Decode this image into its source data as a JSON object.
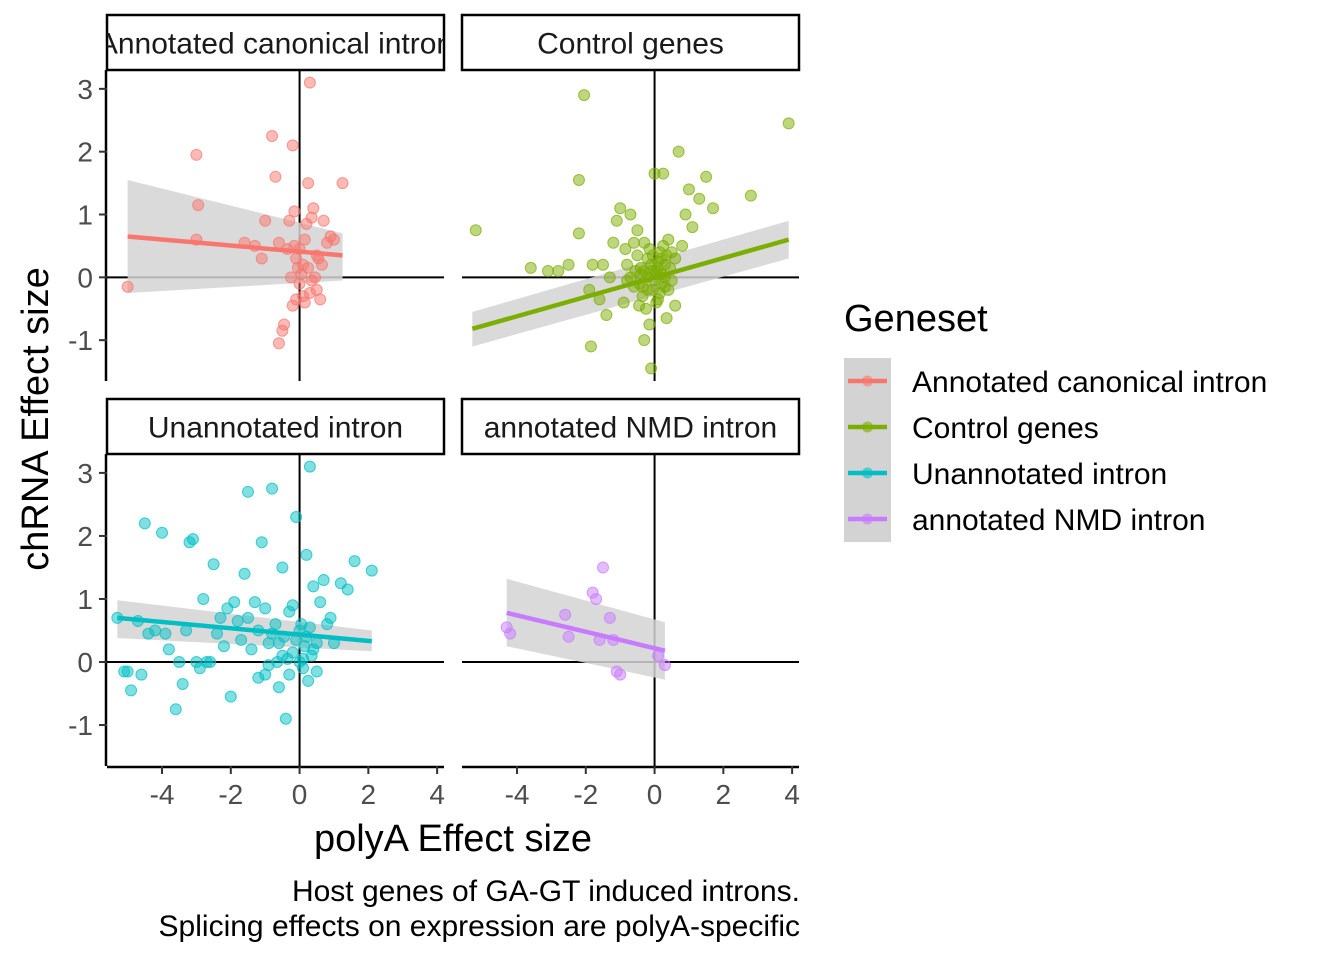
{
  "chart_data": {
    "type": "scatter",
    "xlabel": "polyA Effect size",
    "ylabel": "chRNA Effect size",
    "caption": [
      "Host genes of GA-GT induced introns.",
      "Splicing effects on expression are polyA-specific"
    ],
    "xlim": [
      -5.6,
      4.2
    ],
    "ylim": [
      -1.65,
      3.3
    ],
    "x_ticks": [
      -4,
      -2,
      0,
      2,
      4
    ],
    "y_ticks": [
      -1,
      0,
      1,
      2,
      3
    ],
    "grid": false,
    "reference_lines": {
      "x": 0,
      "y": 0
    },
    "legend": {
      "title": "Geneset",
      "position": "right"
    },
    "colors": {
      "Annotated canonical intron": "#F8766D",
      "Control genes": "#7CAE00",
      "Unannotated intron": "#00BFC4",
      "annotated NMD intron": "#C77CFF",
      "ribbon": "#d3d3d3"
    },
    "panels": [
      {
        "strip": "Annotated canonical intron",
        "series": "Annotated canonical intron",
        "fit": {
          "x": [
            -5.0,
            1.25
          ],
          "y": [
            0.65,
            0.35
          ],
          "se_lower": [
            -0.25,
            -0.05
          ],
          "se_upper": [
            1.55,
            0.7
          ]
        },
        "points": [
          [
            -5.0,
            -0.15
          ],
          [
            -3.0,
            1.95
          ],
          [
            -2.95,
            1.15
          ],
          [
            -3.0,
            0.6
          ],
          [
            -1.6,
            0.55
          ],
          [
            -1.3,
            0.5
          ],
          [
            -1.1,
            0.3
          ],
          [
            -1.0,
            0.9
          ],
          [
            -0.8,
            2.25
          ],
          [
            -0.7,
            1.6
          ],
          [
            -0.6,
            0.55
          ],
          [
            -0.5,
            -0.85
          ],
          [
            -0.45,
            -0.75
          ],
          [
            -0.35,
            0.45
          ],
          [
            -0.3,
            0.9
          ],
          [
            -0.6,
            -1.05
          ],
          [
            -0.2,
            2.1
          ],
          [
            -0.15,
            1.05
          ],
          [
            -0.1,
            0.3
          ],
          [
            -0.05,
            0.15
          ],
          [
            0.0,
            -0.1
          ],
          [
            0.05,
            0.05
          ],
          [
            0.1,
            -0.3
          ],
          [
            0.15,
            0.6
          ],
          [
            0.2,
            0.85
          ],
          [
            0.25,
            1.5
          ],
          [
            0.3,
            3.1
          ],
          [
            0.35,
            0.95
          ],
          [
            0.4,
            1.1
          ],
          [
            0.45,
            0.0
          ],
          [
            0.5,
            -0.2
          ],
          [
            0.55,
            0.3
          ],
          [
            0.6,
            -0.35
          ],
          [
            0.65,
            0.2
          ],
          [
            0.7,
            0.9
          ],
          [
            0.8,
            0.55
          ],
          [
            0.9,
            0.65
          ],
          [
            1.0,
            0.6
          ],
          [
            1.25,
            1.5
          ],
          [
            -0.2,
            -0.45
          ],
          [
            -0.1,
            -0.35
          ],
          [
            0.0,
            0.45
          ],
          [
            0.15,
            -0.4
          ],
          [
            0.25,
            0.15
          ],
          [
            0.35,
            -0.05
          ],
          [
            0.5,
            0.35
          ],
          [
            -0.25,
            0.0
          ],
          [
            0.1,
            0.2
          ],
          [
            0.3,
            -0.25
          ],
          [
            -0.15,
            0.5
          ]
        ]
      },
      {
        "strip": "Control genes",
        "series": "Control genes",
        "fit": {
          "x": [
            -5.3,
            3.9
          ],
          "y": [
            -0.82,
            0.6
          ],
          "se_lower": [
            -1.1,
            0.3
          ],
          "se_upper": [
            -0.55,
            0.9
          ]
        },
        "points": [
          [
            -5.2,
            0.75
          ],
          [
            -3.6,
            0.15
          ],
          [
            -3.1,
            0.1
          ],
          [
            -2.8,
            0.1
          ],
          [
            -2.5,
            0.2
          ],
          [
            -2.2,
            1.55
          ],
          [
            -2.2,
            0.7
          ],
          [
            -2.05,
            2.9
          ],
          [
            -1.85,
            -1.1
          ],
          [
            -1.9,
            -0.2
          ],
          [
            -1.8,
            0.2
          ],
          [
            -1.6,
            -0.35
          ],
          [
            -1.5,
            0.2
          ],
          [
            -1.4,
            -0.6
          ],
          [
            -1.3,
            0.0
          ],
          [
            -1.2,
            0.55
          ],
          [
            -1.1,
            0.9
          ],
          [
            -1.0,
            1.1
          ],
          [
            -0.9,
            -0.4
          ],
          [
            -0.85,
            0.45
          ],
          [
            -0.8,
            0.2
          ],
          [
            -0.7,
            1.0
          ],
          [
            -0.6,
            0.55
          ],
          [
            -0.5,
            0.75
          ],
          [
            -0.45,
            -0.1
          ],
          [
            -0.4,
            0.15
          ],
          [
            -0.35,
            -0.3
          ],
          [
            -0.3,
            0.55
          ],
          [
            -0.25,
            -0.5
          ],
          [
            -0.2,
            0.3
          ],
          [
            -0.15,
            -0.75
          ],
          [
            -0.1,
            0.1
          ],
          [
            -0.05,
            -0.2
          ],
          [
            0.0,
            1.65
          ],
          [
            0.05,
            0.05
          ],
          [
            0.1,
            -0.35
          ],
          [
            0.15,
            0.4
          ],
          [
            0.2,
            -0.1
          ],
          [
            0.25,
            1.65
          ],
          [
            0.3,
            0.2
          ],
          [
            0.35,
            -0.65
          ],
          [
            0.4,
            0.6
          ],
          [
            0.5,
            -0.05
          ],
          [
            0.6,
            0.3
          ],
          [
            0.7,
            2.0
          ],
          [
            0.8,
            0.5
          ],
          [
            0.9,
            1.0
          ],
          [
            1.0,
            1.4
          ],
          [
            1.1,
            0.8
          ],
          [
            1.3,
            1.25
          ],
          [
            1.5,
            1.6
          ],
          [
            1.7,
            1.1
          ],
          [
            2.8,
            1.3
          ],
          [
            3.9,
            2.45
          ],
          [
            -0.3,
            -1.0
          ],
          [
            -0.1,
            -1.45
          ],
          [
            -0.5,
            0.35
          ],
          [
            -0.6,
            -0.15
          ],
          [
            -0.7,
            0.0
          ],
          [
            -0.8,
            -0.05
          ],
          [
            -0.4,
            0.05
          ],
          [
            -0.2,
            0.0
          ],
          [
            0.0,
            0.1
          ],
          [
            0.1,
            0.15
          ],
          [
            0.2,
            0.05
          ],
          [
            0.3,
            -0.15
          ],
          [
            0.4,
            -0.2
          ],
          [
            0.1,
            0.25
          ],
          [
            -0.1,
            0.2
          ],
          [
            0.0,
            -0.05
          ],
          [
            -0.3,
            0.1
          ],
          [
            0.2,
            0.3
          ],
          [
            0.5,
            0.4
          ],
          [
            -0.2,
            -0.2
          ],
          [
            0.3,
            0.0
          ],
          [
            -0.45,
            -0.45
          ],
          [
            0.15,
            -0.25
          ],
          [
            0.35,
            0.35
          ],
          [
            -0.05,
            0.35
          ],
          [
            0.05,
            -0.4
          ],
          [
            -0.15,
            0.45
          ],
          [
            0.25,
            0.5
          ],
          [
            0.45,
            0.15
          ],
          [
            -0.35,
            -0.15
          ],
          [
            0.6,
            -0.45
          ],
          [
            -0.55,
            0.1
          ]
        ]
      },
      {
        "strip": "Unannotated intron",
        "series": "Unannotated intron",
        "fit": {
          "x": [
            -5.3,
            2.1
          ],
          "y": [
            0.7,
            0.33
          ],
          "se_lower": [
            0.38,
            0.17
          ],
          "se_upper": [
            0.98,
            0.5
          ]
        },
        "points": [
          [
            -5.3,
            0.7
          ],
          [
            -5.1,
            -0.15
          ],
          [
            -5.0,
            -0.15
          ],
          [
            -4.9,
            -0.45
          ],
          [
            -4.7,
            0.65
          ],
          [
            -4.6,
            -0.2
          ],
          [
            -4.5,
            2.2
          ],
          [
            -4.4,
            0.45
          ],
          [
            -4.2,
            0.5
          ],
          [
            -4.0,
            2.05
          ],
          [
            -3.9,
            0.45
          ],
          [
            -3.8,
            0.2
          ],
          [
            -3.6,
            -0.75
          ],
          [
            -3.5,
            0.0
          ],
          [
            -3.4,
            -0.35
          ],
          [
            -3.3,
            0.5
          ],
          [
            -3.2,
            1.9
          ],
          [
            -3.1,
            1.95
          ],
          [
            -3.0,
            0.0
          ],
          [
            -2.9,
            -0.1
          ],
          [
            -2.8,
            1.0
          ],
          [
            -2.7,
            0.0
          ],
          [
            -2.6,
            0.0
          ],
          [
            -2.5,
            1.55
          ],
          [
            -2.4,
            0.45
          ],
          [
            -2.3,
            0.7
          ],
          [
            -2.2,
            0.25
          ],
          [
            -2.1,
            0.85
          ],
          [
            -2.0,
            -0.55
          ],
          [
            -1.9,
            0.95
          ],
          [
            -1.8,
            0.65
          ],
          [
            -1.7,
            0.35
          ],
          [
            -1.6,
            1.4
          ],
          [
            -1.5,
            0.7
          ],
          [
            -1.4,
            0.2
          ],
          [
            -1.3,
            0.95
          ],
          [
            -1.2,
            0.5
          ],
          [
            -1.1,
            1.9
          ],
          [
            -1.0,
            0.85
          ],
          [
            -0.9,
            0.3
          ],
          [
            -0.8,
            2.75
          ],
          [
            -0.7,
            0.6
          ],
          [
            -0.6,
            0.3
          ],
          [
            -0.5,
            1.5
          ],
          [
            -0.4,
            -0.9
          ],
          [
            -0.3,
            0.8
          ],
          [
            -0.2,
            0.9
          ],
          [
            -0.1,
            2.3
          ],
          [
            0.0,
            0.5
          ],
          [
            0.1,
            0.05
          ],
          [
            0.2,
            1.7
          ],
          [
            0.3,
            3.1
          ],
          [
            0.4,
            1.2
          ],
          [
            0.5,
            0.3
          ],
          [
            0.6,
            0.95
          ],
          [
            0.7,
            1.3
          ],
          [
            0.8,
            0.6
          ],
          [
            0.9,
            0.7
          ],
          [
            1.0,
            0.3
          ],
          [
            1.2,
            1.25
          ],
          [
            1.4,
            1.15
          ],
          [
            1.6,
            1.6
          ],
          [
            2.1,
            1.45
          ],
          [
            -1.5,
            2.7
          ],
          [
            -1.2,
            -0.25
          ],
          [
            -0.9,
            -0.05
          ],
          [
            -0.6,
            -0.4
          ],
          [
            -0.3,
            -0.2
          ],
          [
            0.0,
            0.0
          ],
          [
            0.2,
            0.4
          ],
          [
            0.4,
            0.2
          ],
          [
            -0.5,
            0.1
          ],
          [
            -0.2,
            0.15
          ],
          [
            0.1,
            -0.1
          ],
          [
            0.3,
            0.55
          ],
          [
            -0.8,
            0.45
          ],
          [
            -1.0,
            -0.2
          ],
          [
            0.5,
            -0.15
          ],
          [
            -0.1,
            0.35
          ],
          [
            0.15,
            0.25
          ],
          [
            -0.35,
            0.05
          ],
          [
            0.25,
            -0.3
          ],
          [
            -0.45,
            0.4
          ],
          [
            0.05,
            0.6
          ],
          [
            -0.65,
            0.0
          ],
          [
            0.35,
            0.1
          ]
        ]
      },
      {
        "strip": "annotated NMD intron",
        "series": "annotated NMD intron",
        "fit": {
          "x": [
            -4.3,
            0.3
          ],
          "y": [
            0.78,
            0.18
          ],
          "se_lower": [
            0.25,
            -0.28
          ],
          "se_upper": [
            1.32,
            0.63
          ]
        },
        "points": [
          [
            -4.3,
            0.55
          ],
          [
            -4.2,
            0.45
          ],
          [
            -2.6,
            0.75
          ],
          [
            -2.5,
            0.4
          ],
          [
            -1.8,
            1.1
          ],
          [
            -1.7,
            1.0
          ],
          [
            -1.6,
            0.35
          ],
          [
            -1.5,
            1.5
          ],
          [
            -1.3,
            0.7
          ],
          [
            -1.2,
            0.35
          ],
          [
            -1.1,
            -0.15
          ],
          [
            -1.0,
            -0.2
          ],
          [
            0.1,
            0.1
          ],
          [
            0.3,
            -0.05
          ]
        ]
      }
    ]
  }
}
